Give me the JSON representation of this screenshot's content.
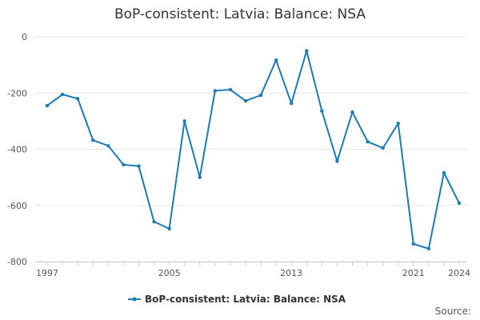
{
  "chart_data": {
    "type": "line",
    "title": "BoP-consistent: Latvia: Balance: NSA",
    "source_label": "Source:",
    "xlabel": "",
    "ylabel": "",
    "x": [
      1997,
      1998,
      1999,
      2000,
      2001,
      2002,
      2003,
      2004,
      2005,
      2006,
      2007,
      2008,
      2009,
      2010,
      2011,
      2012,
      2013,
      2014,
      2015,
      2016,
      2017,
      2018,
      2019,
      2020,
      2021,
      2022,
      2023,
      2024
    ],
    "series": [
      {
        "name": "BoP-consistent: Latvia: Balance: NSA",
        "color": "#1a7bb5",
        "values": [
          -245,
          -205,
          -220,
          -368,
          -388,
          -455,
          -460,
          -658,
          -683,
          -300,
          -500,
          -192,
          -188,
          -228,
          -208,
          -83,
          -237,
          -50,
          -264,
          -443,
          -268,
          -373,
          -396,
          -308,
          -737,
          -754,
          -484,
          -592
        ]
      }
    ],
    "ylim": [
      -800,
      0
    ],
    "xlim": [
      1997,
      2024
    ],
    "y_ticks": [
      0,
      -200,
      -400,
      -600,
      -800
    ],
    "y_tick_labels": [
      "0",
      "-200",
      "-400",
      "-600",
      "-800"
    ],
    "x_ticks": [
      1997,
      2005,
      2013,
      2021,
      2024
    ],
    "x_tick_labels": [
      "1997",
      "2005",
      "2013",
      "2021",
      "2024"
    ],
    "grid": true,
    "legend_position": "bottom-center"
  }
}
